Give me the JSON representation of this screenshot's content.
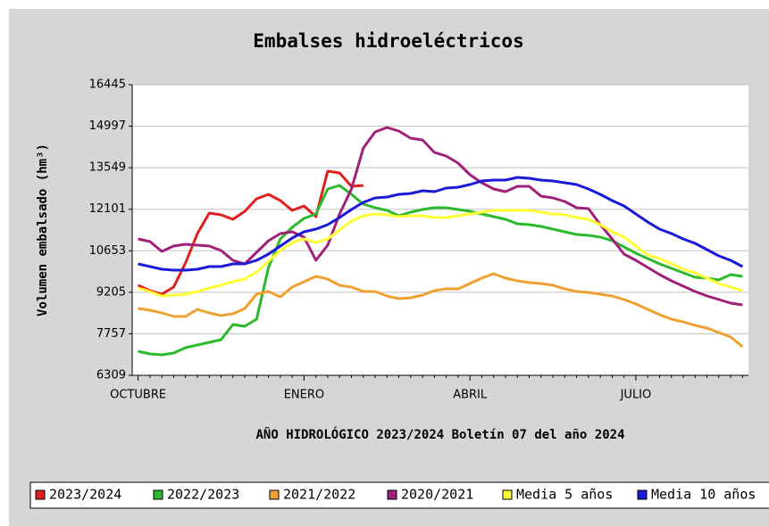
{
  "chart_data": {
    "type": "line",
    "title": "Embalses hidroeléctricos",
    "xlabel": "AÑO HIDROLÓGICO 2023/2024 Boletín 07 del año 2024",
    "ylabel": "Volumen embalsado (hm³)",
    "categories": [
      "OCTUBRE",
      null,
      null,
      null,
      null,
      null,
      null,
      null,
      null,
      null,
      null,
      null,
      null,
      null,
      "ENERO",
      null,
      null,
      null,
      null,
      null,
      null,
      null,
      null,
      null,
      null,
      null,
      null,
      null,
      "ABRIL",
      null,
      null,
      null,
      null,
      null,
      null,
      null,
      null,
      null,
      null,
      null,
      null,
      null,
      "JULIO",
      null,
      null,
      null,
      null,
      null,
      null,
      null,
      null,
      null
    ],
    "ylim": [
      6309,
      16445
    ],
    "yticks": [
      6309,
      7757,
      9205,
      10653,
      12101,
      13549,
      14997,
      16445
    ],
    "grid": true,
    "legend": "bottom",
    "series": [
      {
        "name": "2023/2024",
        "color": "#e01f1f",
        "values": [
          9450,
          9263,
          9139,
          9388,
          10227,
          11253,
          11968,
          11906,
          11750,
          12030,
          12465,
          12621,
          12403,
          12061,
          12217,
          11844,
          13429,
          13367,
          12901,
          12932,
          null,
          null,
          null,
          null,
          null,
          null,
          null,
          null,
          null,
          null,
          null,
          null,
          null,
          null,
          null,
          null,
          null,
          null,
          null,
          null,
          null,
          null,
          null,
          null,
          null,
          null,
          null,
          null,
          null,
          null,
          null,
          null
        ]
      },
      {
        "name": "2022/2023",
        "color": "#2db92d",
        "values": [
          7149,
          7056,
          7025,
          7087,
          7273,
          7367,
          7460,
          7553,
          8082,
          8020,
          8268,
          10072,
          11066,
          11471,
          11781,
          11937,
          12807,
          12932,
          12621,
          12279,
          12155,
          12061,
          11875,
          11999,
          12092,
          12155,
          12155,
          12092,
          12030,
          11937,
          11844,
          11750,
          11595,
          11564,
          11502,
          11408,
          11315,
          11222,
          11191,
          11129,
          11004,
          10787,
          10569,
          10382,
          10196,
          10040,
          9885,
          9730,
          9699,
          9636,
          9823,
          9761
        ]
      },
      {
        "name": "2021/2022",
        "color": "#f0a030",
        "values": [
          8641,
          8579,
          8486,
          8362,
          8362,
          8610,
          8486,
          8393,
          8455,
          8641,
          9139,
          9232,
          9046,
          9388,
          9574,
          9761,
          9667,
          9450,
          9388,
          9232,
          9232,
          9077,
          8983,
          9014,
          9108,
          9263,
          9325,
          9325,
          9512,
          9698,
          9854,
          9698,
          9605,
          9543,
          9512,
          9450,
          9325,
          9232,
          9201,
          9139,
          9077,
          8952,
          8797,
          8610,
          8424,
          8268,
          8175,
          8051,
          7957,
          7802,
          7647,
          7305
        ]
      },
      {
        "name": "2020/2021",
        "color": "#a0207a",
        "values": [
          11066,
          10973,
          10631,
          10818,
          10880,
          10849,
          10818,
          10662,
          10320,
          10196,
          10600,
          11004,
          11253,
          11315,
          11129,
          10320,
          10849,
          11937,
          12807,
          14238,
          14797,
          14953,
          14828,
          14580,
          14517,
          14082,
          13958,
          13709,
          13305,
          13025,
          12807,
          12714,
          12901,
          12901,
          12559,
          12497,
          12372,
          12155,
          12123,
          11564,
          11066,
          10538,
          10320,
          10072,
          9823,
          9605,
          9419,
          9232,
          9077,
          8952,
          8828,
          8766
        ]
      },
      {
        "name": "Media 5 años",
        "color": "#ffff33",
        "values": [
          9356,
          9232,
          9077,
          9108,
          9139,
          9232,
          9356,
          9450,
          9574,
          9667,
          9916,
          10289,
          10662,
          10942,
          11066,
          10942,
          11066,
          11377,
          11688,
          11875,
          11937,
          11906,
          11844,
          11875,
          11875,
          11813,
          11813,
          11875,
          11937,
          11999,
          12061,
          12061,
          12061,
          12061,
          11999,
          11937,
          11906,
          11813,
          11750,
          11564,
          11315,
          11129,
          10818,
          10507,
          10382,
          10196,
          10009,
          9885,
          9699,
          9512,
          9388,
          9263
        ]
      },
      {
        "name": "Media 10 años",
        "color": "#1a1ad8",
        "values": [
          10196,
          10103,
          10009,
          9978,
          9978,
          10009,
          10103,
          10103,
          10196,
          10196,
          10320,
          10538,
          10818,
          11098,
          11315,
          11408,
          11564,
          11813,
          12092,
          12341,
          12497,
          12528,
          12621,
          12652,
          12745,
          12714,
          12839,
          12870,
          12963,
          13087,
          13118,
          13118,
          13212,
          13181,
          13118,
          13087,
          13025,
          12963,
          12807,
          12621,
          12403,
          12217,
          11937,
          11657,
          11408,
          11253,
          11066,
          10911,
          10693,
          10476,
          10320,
          10103
        ]
      }
    ]
  }
}
